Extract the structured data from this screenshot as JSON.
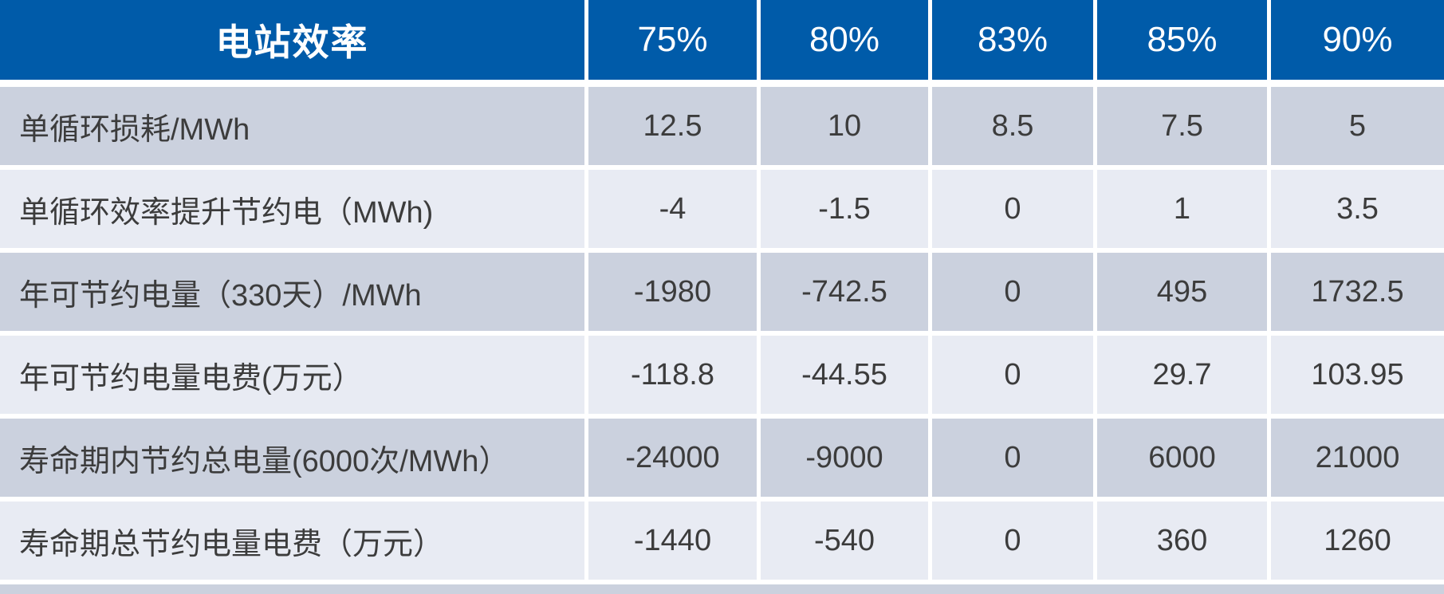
{
  "chart_data": {
    "type": "table",
    "title": "电站效率",
    "columns": [
      "75%",
      "80%",
      "83%",
      "85%",
      "90%"
    ],
    "rows": [
      {
        "label": "单循环损耗/MWh",
        "values": [
          12.5,
          10,
          8.5,
          7.5,
          5
        ]
      },
      {
        "label": "单循环效率提升节约电（MWh)",
        "values": [
          -4,
          -1.5,
          0,
          1,
          3.5
        ]
      },
      {
        "label": "年可节约电量（330天）/MWh",
        "values": [
          -1980,
          -742.5,
          0,
          495,
          1732.5
        ]
      },
      {
        "label": "年可节约电量电费(万元）",
        "values": [
          -118.8,
          -44.55,
          0,
          29.7,
          103.95
        ]
      },
      {
        "label": "寿命期内节约总电量(6000次/MWh）",
        "values": [
          -24000,
          -9000,
          0,
          6000,
          21000
        ]
      },
      {
        "label": "寿命期总节约电量电费（万元）",
        "values": [
          -1440,
          -540,
          0,
          360,
          1260
        ]
      }
    ],
    "layout": {
      "header_position": "top",
      "row_striping": "alternating",
      "first_column_align": "left",
      "value_align": "center",
      "grid": "white separators between all cells"
    }
  },
  "colors": {
    "header_bg": "#005BA9",
    "header_text": "#FFFFFF",
    "row_dark": "#CBD1DE",
    "row_light": "#E8EBF3",
    "body_text": "#3C3C3C",
    "separator": "#FFFFFF"
  }
}
